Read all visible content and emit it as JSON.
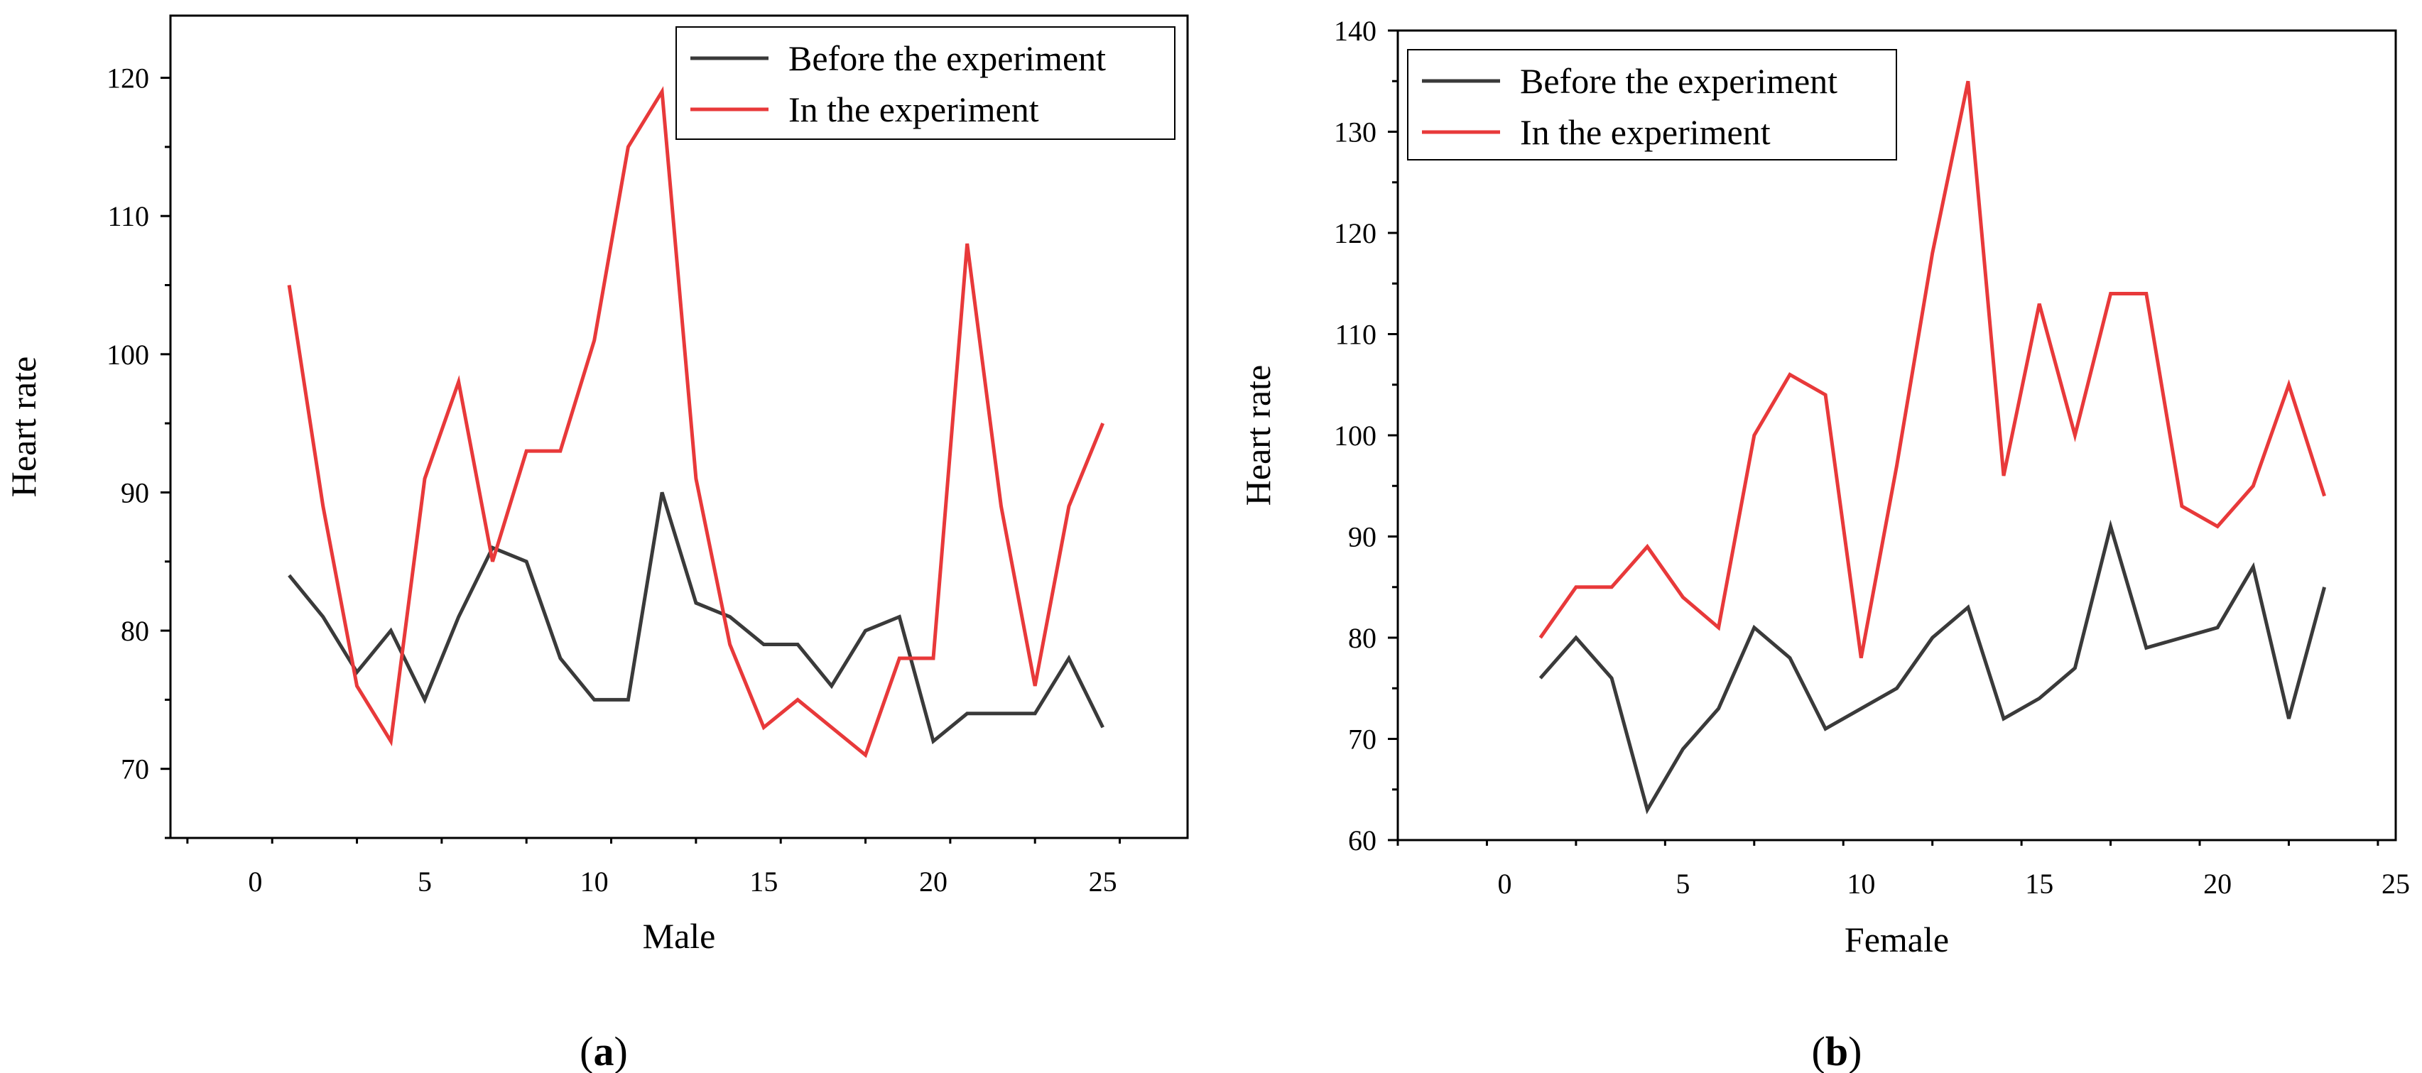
{
  "figure": {
    "panels": [
      {
        "label_open": "(",
        "label_letter": "a",
        "label_close": ")"
      },
      {
        "label_open": "(",
        "label_letter": "b",
        "label_close": ")"
      }
    ]
  },
  "chart_data": [
    {
      "type": "line",
      "xlabel": "Male",
      "ylabel": "Heart rate",
      "xlim": [
        -2.5,
        27.5
      ],
      "ylim": [
        65,
        124.5
      ],
      "xticks": [
        0,
        5,
        10,
        15,
        20,
        25
      ],
      "yticks": [
        70,
        80,
        90,
        100,
        110,
        120
      ],
      "legend_position": "top-right",
      "x": [
        1,
        2,
        3,
        4,
        5,
        6,
        7,
        8,
        9,
        10,
        11,
        12,
        13,
        14,
        15,
        16,
        17,
        18,
        19,
        20,
        21,
        22,
        23,
        24,
        25
      ],
      "series": [
        {
          "name": "Before the experiment",
          "color": "#3a3a3a",
          "values": [
            84,
            81,
            77,
            80,
            75,
            81,
            86,
            85,
            78,
            75,
            75,
            90,
            82,
            81,
            79,
            79,
            76,
            80,
            81,
            72,
            74,
            74,
            74,
            78,
            73
          ]
        },
        {
          "name": "In the experiment",
          "color": "#e8393a",
          "values": [
            105,
            89,
            76,
            72,
            91,
            98,
            85,
            93,
            93,
            101,
            115,
            119,
            91,
            79,
            73,
            75,
            73,
            71,
            78,
            78,
            108,
            89,
            76,
            89,
            95
          ]
        }
      ]
    },
    {
      "type": "line",
      "xlabel": "Female",
      "ylabel": "Heart rate",
      "xlim": [
        -3,
        25
      ],
      "ylim": [
        60,
        140
      ],
      "xticks": [
        0,
        5,
        10,
        15,
        20,
        25
      ],
      "yticks": [
        60,
        70,
        80,
        90,
        100,
        110,
        120,
        130,
        140
      ],
      "legend_position": "top-left",
      "x": [
        1,
        2,
        3,
        4,
        5,
        6,
        7,
        8,
        9,
        10,
        11,
        12,
        13,
        14,
        15,
        16,
        17,
        18,
        19,
        20,
        21,
        22,
        23
      ],
      "series": [
        {
          "name": "Before the experiment",
          "color": "#3a3a3a",
          "values": [
            76,
            80,
            76,
            63,
            69,
            73,
            81,
            78,
            71,
            73,
            75,
            80,
            83,
            72,
            74,
            77,
            91,
            79,
            80,
            81,
            87,
            72,
            85
          ]
        },
        {
          "name": "In the experiment",
          "color": "#e8393a",
          "values": [
            80,
            85,
            85,
            89,
            84,
            81,
            100,
            106,
            104,
            78,
            97,
            118,
            135,
            96,
            113,
            100,
            114,
            114,
            93,
            91,
            95,
            105,
            94
          ]
        }
      ]
    }
  ]
}
